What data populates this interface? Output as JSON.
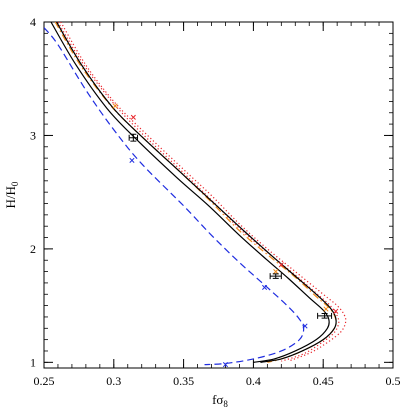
{
  "chart_data": {
    "type": "line",
    "xlabel": "fσ8",
    "ylabel": "H/H0",
    "xlim": [
      0.25,
      0.5
    ],
    "ylim": [
      0.95,
      4.0
    ],
    "x_ticks": [
      0.25,
      0.3,
      0.35,
      0.4,
      0.45,
      0.5
    ],
    "x_tick_labels": [
      "0.25",
      "0.3",
      "0.35",
      "0.4",
      "0.45",
      "0.5"
    ],
    "y_ticks": [
      1,
      2,
      3,
      4
    ],
    "y_tick_labels": [
      "1",
      "2",
      "3",
      "4"
    ],
    "x_minor_step": 0.01,
    "y_minor_step": 0.1,
    "grid": false,
    "series": [
      {
        "style": "dotted",
        "color": "#e8242a",
        "points": [
          [
            0.262,
            4.0
          ],
          [
            0.28,
            3.62
          ],
          [
            0.3,
            3.3
          ],
          [
            0.32,
            3.05
          ],
          [
            0.35,
            2.7
          ],
          [
            0.37,
            2.47
          ],
          [
            0.39,
            2.22
          ],
          [
            0.41,
            2.0
          ],
          [
            0.43,
            1.8
          ],
          [
            0.45,
            1.6
          ],
          [
            0.46,
            1.5
          ],
          [
            0.465,
            1.42
          ],
          [
            0.466,
            1.35
          ],
          [
            0.462,
            1.26
          ],
          [
            0.45,
            1.15
          ],
          [
            0.44,
            1.08
          ],
          [
            0.425,
            1.01
          ]
        ]
      },
      {
        "style": "dotted",
        "color": "#e8242a",
        "points": [
          [
            0.26,
            4.0
          ],
          [
            0.278,
            3.63
          ],
          [
            0.3,
            3.28
          ],
          [
            0.32,
            3.02
          ],
          [
            0.35,
            2.67
          ],
          [
            0.37,
            2.43
          ],
          [
            0.39,
            2.18
          ],
          [
            0.41,
            1.97
          ],
          [
            0.43,
            1.77
          ],
          [
            0.445,
            1.61
          ],
          [
            0.455,
            1.5
          ],
          [
            0.46,
            1.41
          ],
          [
            0.461,
            1.34
          ],
          [
            0.457,
            1.25
          ],
          [
            0.445,
            1.14
          ],
          [
            0.435,
            1.07
          ],
          [
            0.42,
            1.01
          ]
        ]
      },
      {
        "style": "dash-dot",
        "color": "#f08a1a",
        "points": [
          [
            0.258,
            4.0
          ],
          [
            0.276,
            3.62
          ],
          [
            0.298,
            3.26
          ],
          [
            0.32,
            2.99
          ],
          [
            0.35,
            2.65
          ],
          [
            0.37,
            2.41
          ],
          [
            0.39,
            2.16
          ],
          [
            0.41,
            1.95
          ],
          [
            0.43,
            1.75
          ],
          [
            0.445,
            1.58
          ],
          [
            0.455,
            1.47
          ],
          [
            0.459,
            1.38
          ],
          [
            0.458,
            1.3
          ],
          [
            0.45,
            1.2
          ],
          [
            0.435,
            1.1
          ],
          [
            0.42,
            1.03
          ],
          [
            0.41,
            1.0
          ]
        ]
      },
      {
        "style": "solid",
        "color": "#000000",
        "points": [
          [
            0.255,
            4.0
          ],
          [
            0.273,
            3.62
          ],
          [
            0.295,
            3.24
          ],
          [
            0.315,
            2.98
          ],
          [
            0.345,
            2.63
          ],
          [
            0.368,
            2.38
          ],
          [
            0.39,
            2.12
          ],
          [
            0.41,
            1.9
          ],
          [
            0.425,
            1.74
          ],
          [
            0.44,
            1.57
          ],
          [
            0.45,
            1.46
          ],
          [
            0.454,
            1.38
          ],
          [
            0.453,
            1.3
          ],
          [
            0.445,
            1.2
          ],
          [
            0.43,
            1.1
          ],
          [
            0.415,
            1.03
          ],
          [
            0.4,
            1.0
          ]
        ]
      },
      {
        "style": "solid",
        "color": "#000000",
        "points": [
          [
            0.259,
            4.0
          ],
          [
            0.277,
            3.62
          ],
          [
            0.299,
            3.25
          ],
          [
            0.32,
            2.99
          ],
          [
            0.35,
            2.65
          ],
          [
            0.372,
            2.4
          ],
          [
            0.394,
            2.15
          ],
          [
            0.414,
            1.93
          ],
          [
            0.43,
            1.76
          ],
          [
            0.445,
            1.6
          ],
          [
            0.455,
            1.48
          ],
          [
            0.459,
            1.39
          ],
          [
            0.458,
            1.3
          ],
          [
            0.45,
            1.2
          ],
          [
            0.435,
            1.1
          ],
          [
            0.42,
            1.03
          ],
          [
            0.405,
            1.0
          ]
        ]
      },
      {
        "style": "dashed",
        "color": "#1f2de0",
        "points": [
          [
            0.25,
            3.95
          ],
          [
            0.26,
            3.8
          ],
          [
            0.28,
            3.4
          ],
          [
            0.3,
            3.05
          ],
          [
            0.32,
            2.75
          ],
          [
            0.35,
            2.38
          ],
          [
            0.37,
            2.12
          ],
          [
            0.39,
            1.88
          ],
          [
            0.41,
            1.66
          ],
          [
            0.425,
            1.49
          ],
          [
            0.433,
            1.38
          ],
          [
            0.436,
            1.3
          ],
          [
            0.433,
            1.2
          ],
          [
            0.42,
            1.1
          ],
          [
            0.4,
            1.03
          ],
          [
            0.38,
            0.99
          ],
          [
            0.365,
            0.98
          ]
        ]
      }
    ],
    "markers": [
      {
        "color": "#e8242a",
        "points": [
          [
            0.314,
            3.16
          ],
          [
            0.42,
            1.86
          ],
          [
            0.459,
            1.45
          ]
        ]
      },
      {
        "color": "#f08a1a",
        "points": [
          [
            0.301,
            3.26
          ],
          [
            0.416,
            1.8
          ],
          [
            0.452,
            1.47
          ]
        ]
      },
      {
        "color": "#1f2de0",
        "points": [
          [
            0.313,
            2.78
          ],
          [
            0.408,
            1.66
          ],
          [
            0.437,
            1.32
          ],
          [
            0.38,
            0.98
          ]
        ]
      }
    ],
    "error_points": [
      {
        "x": 0.314,
        "y": 2.98,
        "xerr": 0.003,
        "yerr": 0.03
      },
      {
        "x": 0.416,
        "y": 1.76,
        "xerr": 0.004,
        "yerr": 0.02
      },
      {
        "x": 0.451,
        "y": 1.41,
        "xerr": 0.005,
        "yerr": 0.02
      }
    ]
  }
}
